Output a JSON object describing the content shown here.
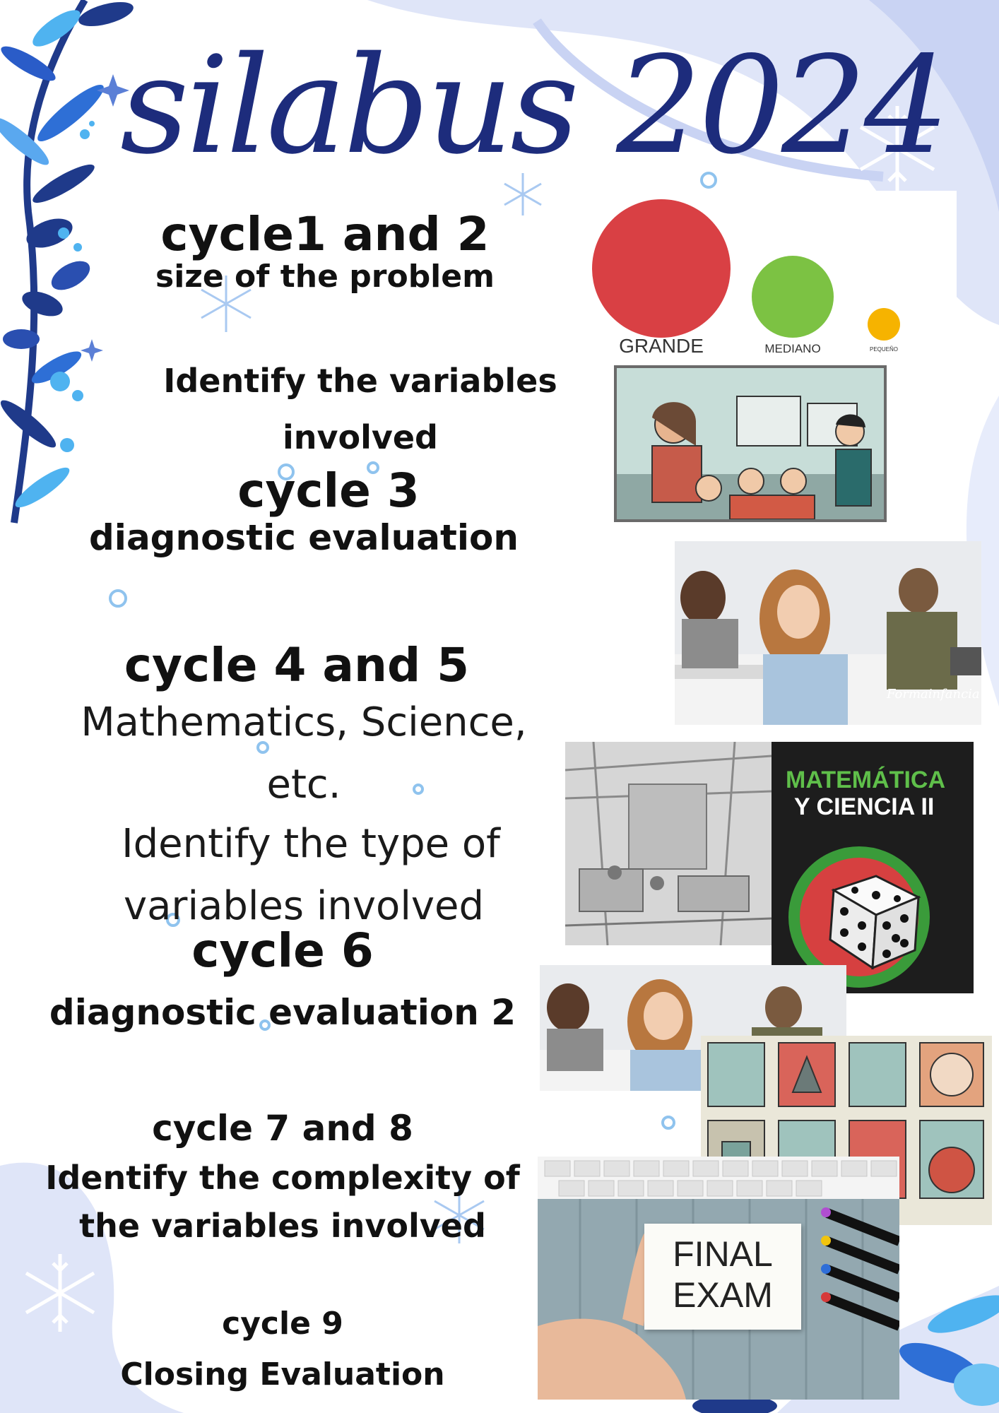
{
  "title": "silabus 2024",
  "colors": {
    "title": "#1d2c7c",
    "background_blob": "#dfe5f8",
    "leaf_dark": "#1f3a8a",
    "leaf_light": "#4fb3f0",
    "circle_grande": "#d94044",
    "circle_mediano": "#7cc243",
    "circle_pequeno": "#f6b300"
  },
  "sections": {
    "c12_title": "cycle1 and 2",
    "c12_sub": "size of the problem",
    "c12_line1": "Identify the variables",
    "c12_line2": "involved",
    "c3_title": "cycle 3",
    "c3_sub": "diagnostic evaluation",
    "c45_title": "cycle 4 and 5",
    "c45_line1": "Mathematics, Science,",
    "c45_line2": "etc.",
    "c45_line3": "Identify the type of",
    "c45_line4": "variables involved",
    "c6_title": "cycle 6",
    "c6_sub": "diagnostic evaluation 2",
    "c78_title": "cycle 7 and 8",
    "c78_line1": "Identify the complexity of",
    "c78_line2": "the variables involved",
    "c9_title": "cycle 9",
    "c9_sub": "Closing Evaluation"
  },
  "images": {
    "size_labels": [
      "GRANDE",
      "MEDIANO",
      "PEQUEÑO"
    ],
    "book_line1": "MATEMÁTICA",
    "book_line2": "Y CIENCIA II",
    "exam_line1": "FINAL",
    "exam_line2": "EXAM",
    "watermark": "Formainfancia"
  },
  "icons": [
    "snowflake-icon",
    "leaf-branch-icon",
    "star-sparkle-icon",
    "dice-icon",
    "hand-icon",
    "pencil-icon",
    "keyboard-icon"
  ]
}
